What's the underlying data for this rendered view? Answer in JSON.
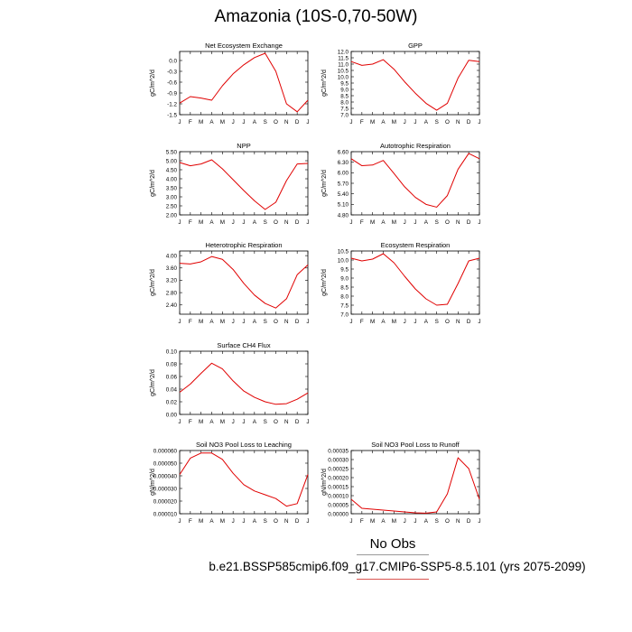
{
  "figure": {
    "title": "Amazonia (10S-0,70-50W)",
    "obs_label": "No Obs",
    "case_label": "b.e21.BSSP585cmip6.f09_g17.CMIP6-SSP5-8.5.101 (yrs 2075-2099)",
    "line_color": "#e00000",
    "rule_color_top": "#999999",
    "rule_color_bottom": "#d9534f"
  },
  "chart_data": [
    {
      "type": "line",
      "title": "Net Ecosystem Exchange",
      "ylabel": "gC/m^2/d",
      "categories": [
        "J",
        "F",
        "M",
        "A",
        "M",
        "J",
        "J",
        "A",
        "S",
        "O",
        "N",
        "D",
        "J"
      ],
      "values": [
        -1.18,
        -1.0,
        -1.04,
        -1.1,
        -0.7,
        -0.37,
        -0.12,
        0.08,
        0.2,
        -0.3,
        -1.2,
        -1.42,
        -1.1
      ],
      "ylim": [
        -1.5,
        0.25
      ],
      "yticks": [
        "-1.5",
        "-1.2",
        "-0.9",
        "-0.6",
        "-0.3",
        "0.0"
      ],
      "ytick_values": [
        -1.5,
        -1.2,
        -0.9,
        -0.6,
        -0.3,
        0.0
      ]
    },
    {
      "type": "line",
      "title": "GPP",
      "ylabel": "gC/m^2/d",
      "categories": [
        "J",
        "F",
        "M",
        "A",
        "M",
        "J",
        "J",
        "A",
        "S",
        "O",
        "N",
        "D",
        "J"
      ],
      "values": [
        11.2,
        10.9,
        11.0,
        11.35,
        10.6,
        9.6,
        8.7,
        7.9,
        7.35,
        7.9,
        9.9,
        11.3,
        11.2
      ],
      "ylim": [
        7.0,
        12.0
      ],
      "yticks": [
        "7.0",
        "7.5",
        "8.0",
        "8.5",
        "9.0",
        "9.5",
        "10.0",
        "10.5",
        "11.0",
        "11.5",
        "12.0"
      ],
      "ytick_values": [
        7.0,
        7.5,
        8.0,
        8.5,
        9.0,
        9.5,
        10.0,
        10.5,
        11.0,
        11.5,
        12.0
      ]
    },
    {
      "type": "line",
      "title": "NPP",
      "ylabel": "gC/m^2/d",
      "categories": [
        "J",
        "F",
        "M",
        "A",
        "M",
        "J",
        "J",
        "A",
        "S",
        "O",
        "N",
        "D",
        "J"
      ],
      "values": [
        4.9,
        4.72,
        4.82,
        5.05,
        4.55,
        3.95,
        3.35,
        2.78,
        2.3,
        2.7,
        3.9,
        4.82,
        4.85
      ],
      "ylim": [
        2.0,
        5.5
      ],
      "yticks": [
        "2.00",
        "2.50",
        "3.00",
        "3.50",
        "4.00",
        "4.50",
        "5.00",
        "5.50"
      ],
      "ytick_values": [
        2.0,
        2.5,
        3.0,
        3.5,
        4.0,
        4.5,
        5.0,
        5.5
      ]
    },
    {
      "type": "line",
      "title": "Autotrophic Respiration",
      "ylabel": "gC/m^2/d",
      "categories": [
        "J",
        "F",
        "M",
        "A",
        "M",
        "J",
        "J",
        "A",
        "S",
        "O",
        "N",
        "D",
        "J"
      ],
      "values": [
        6.4,
        6.2,
        6.22,
        6.35,
        5.98,
        5.6,
        5.3,
        5.1,
        5.02,
        5.35,
        6.1,
        6.55,
        6.4
      ],
      "ylim": [
        4.8,
        6.6
      ],
      "yticks": [
        "4.80",
        "5.10",
        "5.40",
        "5.70",
        "6.00",
        "6.30",
        "6.60"
      ],
      "ytick_values": [
        4.8,
        5.1,
        5.4,
        5.7,
        6.0,
        6.3,
        6.6
      ]
    },
    {
      "type": "line",
      "title": "Heterotrophic Respiration",
      "ylabel": "gC/m^2/d",
      "categories": [
        "J",
        "F",
        "M",
        "A",
        "M",
        "J",
        "J",
        "A",
        "S",
        "O",
        "N",
        "D",
        "J"
      ],
      "values": [
        3.75,
        3.73,
        3.8,
        3.97,
        3.88,
        3.55,
        3.1,
        2.72,
        2.45,
        2.3,
        2.6,
        3.38,
        3.7
      ],
      "ylim": [
        2.1,
        4.15
      ],
      "yticks": [
        "2.40",
        "2.80",
        "3.20",
        "3.60",
        "4.00"
      ],
      "ytick_values": [
        2.4,
        2.8,
        3.2,
        3.6,
        4.0
      ]
    },
    {
      "type": "line",
      "title": "Ecosystem Respiration",
      "ylabel": "gC/m^2/d",
      "categories": [
        "J",
        "F",
        "M",
        "A",
        "M",
        "J",
        "J",
        "A",
        "S",
        "O",
        "N",
        "D",
        "J"
      ],
      "values": [
        10.1,
        9.95,
        10.05,
        10.35,
        9.85,
        9.1,
        8.4,
        7.85,
        7.5,
        7.55,
        8.7,
        9.95,
        10.1
      ],
      "ylim": [
        7.0,
        10.5
      ],
      "yticks": [
        "7.0",
        "7.5",
        "8.0",
        "8.5",
        "9.0",
        "9.5",
        "10.0",
        "10.5"
      ],
      "ytick_values": [
        7.0,
        7.5,
        8.0,
        8.5,
        9.0,
        9.5,
        10.0,
        10.5
      ]
    },
    {
      "type": "line",
      "title": "Surface CH4 Flux",
      "ylabel": "gC/m^2/d",
      "categories": [
        "J",
        "F",
        "M",
        "A",
        "M",
        "J",
        "J",
        "A",
        "S",
        "O",
        "N",
        "D",
        "J"
      ],
      "values": [
        0.035,
        0.048,
        0.065,
        0.081,
        0.072,
        0.053,
        0.037,
        0.027,
        0.02,
        0.016,
        0.017,
        0.024,
        0.034
      ],
      "ylim": [
        0.0,
        0.1
      ],
      "yticks": [
        "0.00",
        "0.02",
        "0.04",
        "0.06",
        "0.08",
        "0.10"
      ],
      "ytick_values": [
        0.0,
        0.02,
        0.04,
        0.06,
        0.08,
        0.1
      ]
    },
    {
      "type": "line",
      "title": "Soil NO3 Pool Loss to Leaching",
      "ylabel": "gN/m^2/d",
      "categories": [
        "J",
        "F",
        "M",
        "A",
        "M",
        "J",
        "J",
        "A",
        "S",
        "O",
        "N",
        "D",
        "J"
      ],
      "values": [
        4.1e-05,
        5.4e-05,
        5.8e-05,
        5.8e-05,
        5.3e-05,
        4.2e-05,
        3.3e-05,
        2.8e-05,
        2.5e-05,
        2.2e-05,
        1.6e-05,
        1.8e-05,
        4.1e-05
      ],
      "ylim": [
        1e-05,
        6e-05
      ],
      "yticks": [
        "0.000010",
        "0.000020",
        "0.000030",
        "0.000040",
        "0.000050",
        "0.000060"
      ],
      "ytick_values": [
        1e-05,
        2e-05,
        3e-05,
        4e-05,
        5e-05,
        6e-05
      ]
    },
    {
      "type": "line",
      "title": "Soil NO3 Pool Loss to Runoff",
      "ylabel": "gN/m^2/d",
      "categories": [
        "J",
        "F",
        "M",
        "A",
        "M",
        "J",
        "J",
        "A",
        "S",
        "O",
        "N",
        "D",
        "J"
      ],
      "values": [
        8e-05,
        3e-05,
        2.5e-05,
        2e-05,
        1.5e-05,
        1e-05,
        5e-06,
        3e-06,
        1e-05,
        0.00011,
        0.00031,
        0.00025,
        8e-05
      ],
      "ylim": [
        0.0,
        0.00035
      ],
      "yticks": [
        "0.00000",
        "0.00005",
        "0.00010",
        "0.00015",
        "0.00020",
        "0.00025",
        "0.00030",
        "0.00035"
      ],
      "ytick_values": [
        0.0,
        5e-05,
        0.0001,
        0.00015,
        0.0002,
        0.00025,
        0.0003,
        0.00035
      ]
    }
  ]
}
